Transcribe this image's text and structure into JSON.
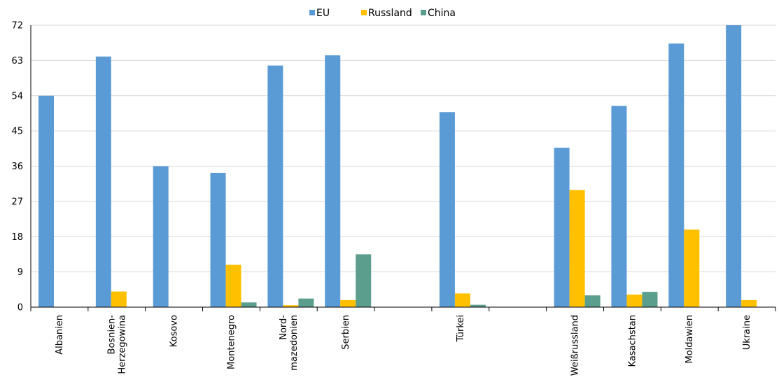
{
  "chart_data": {
    "type": "bar",
    "categories": [
      "Albanien",
      "Bosnien-Herzegowina",
      "Kosovo",
      "Montenegro",
      "Nord-mazedonien",
      "Serbien",
      "",
      "Türkei",
      "",
      "Weißrussland",
      "Kasachstan",
      "Moldawien",
      "Ukraine"
    ],
    "category_lines": [
      [
        "Albanien"
      ],
      [
        "Bosnien-",
        "Herzegowina"
      ],
      [
        "Kosovo"
      ],
      [
        "Montenegro"
      ],
      [
        "Nord-",
        "mazedonien"
      ],
      [
        "Serbien"
      ],
      [],
      [
        "Türkei"
      ],
      [],
      [
        "Weißrussland"
      ],
      [
        "Kasachstan"
      ],
      [
        "Moldawien"
      ],
      [
        "Ukraine"
      ]
    ],
    "series": [
      {
        "name": "EU",
        "color": "#5B9BD5",
        "values": [
          54,
          64,
          36,
          34.3,
          61.7,
          64.3,
          null,
          49.8,
          null,
          40.7,
          51.4,
          67.3,
          72
        ]
      },
      {
        "name": "Russland",
        "color": "#FFC000",
        "values": [
          0,
          4,
          0,
          10.8,
          0.5,
          1.8,
          null,
          3.5,
          null,
          29.9,
          3.2,
          19.8,
          1.8
        ]
      },
      {
        "name": "China",
        "color": "#5B9E8D",
        "values": [
          0,
          0,
          0,
          1.2,
          2.2,
          13.5,
          null,
          0.6,
          null,
          3,
          3.9,
          0,
          0
        ]
      }
    ],
    "yticks": [
      "0",
      "9",
      "18",
      "27",
      "36",
      "45",
      "54",
      "63",
      "72"
    ],
    "ylim": [
      0,
      72
    ],
    "grid": true,
    "legend_position": "top-center"
  }
}
